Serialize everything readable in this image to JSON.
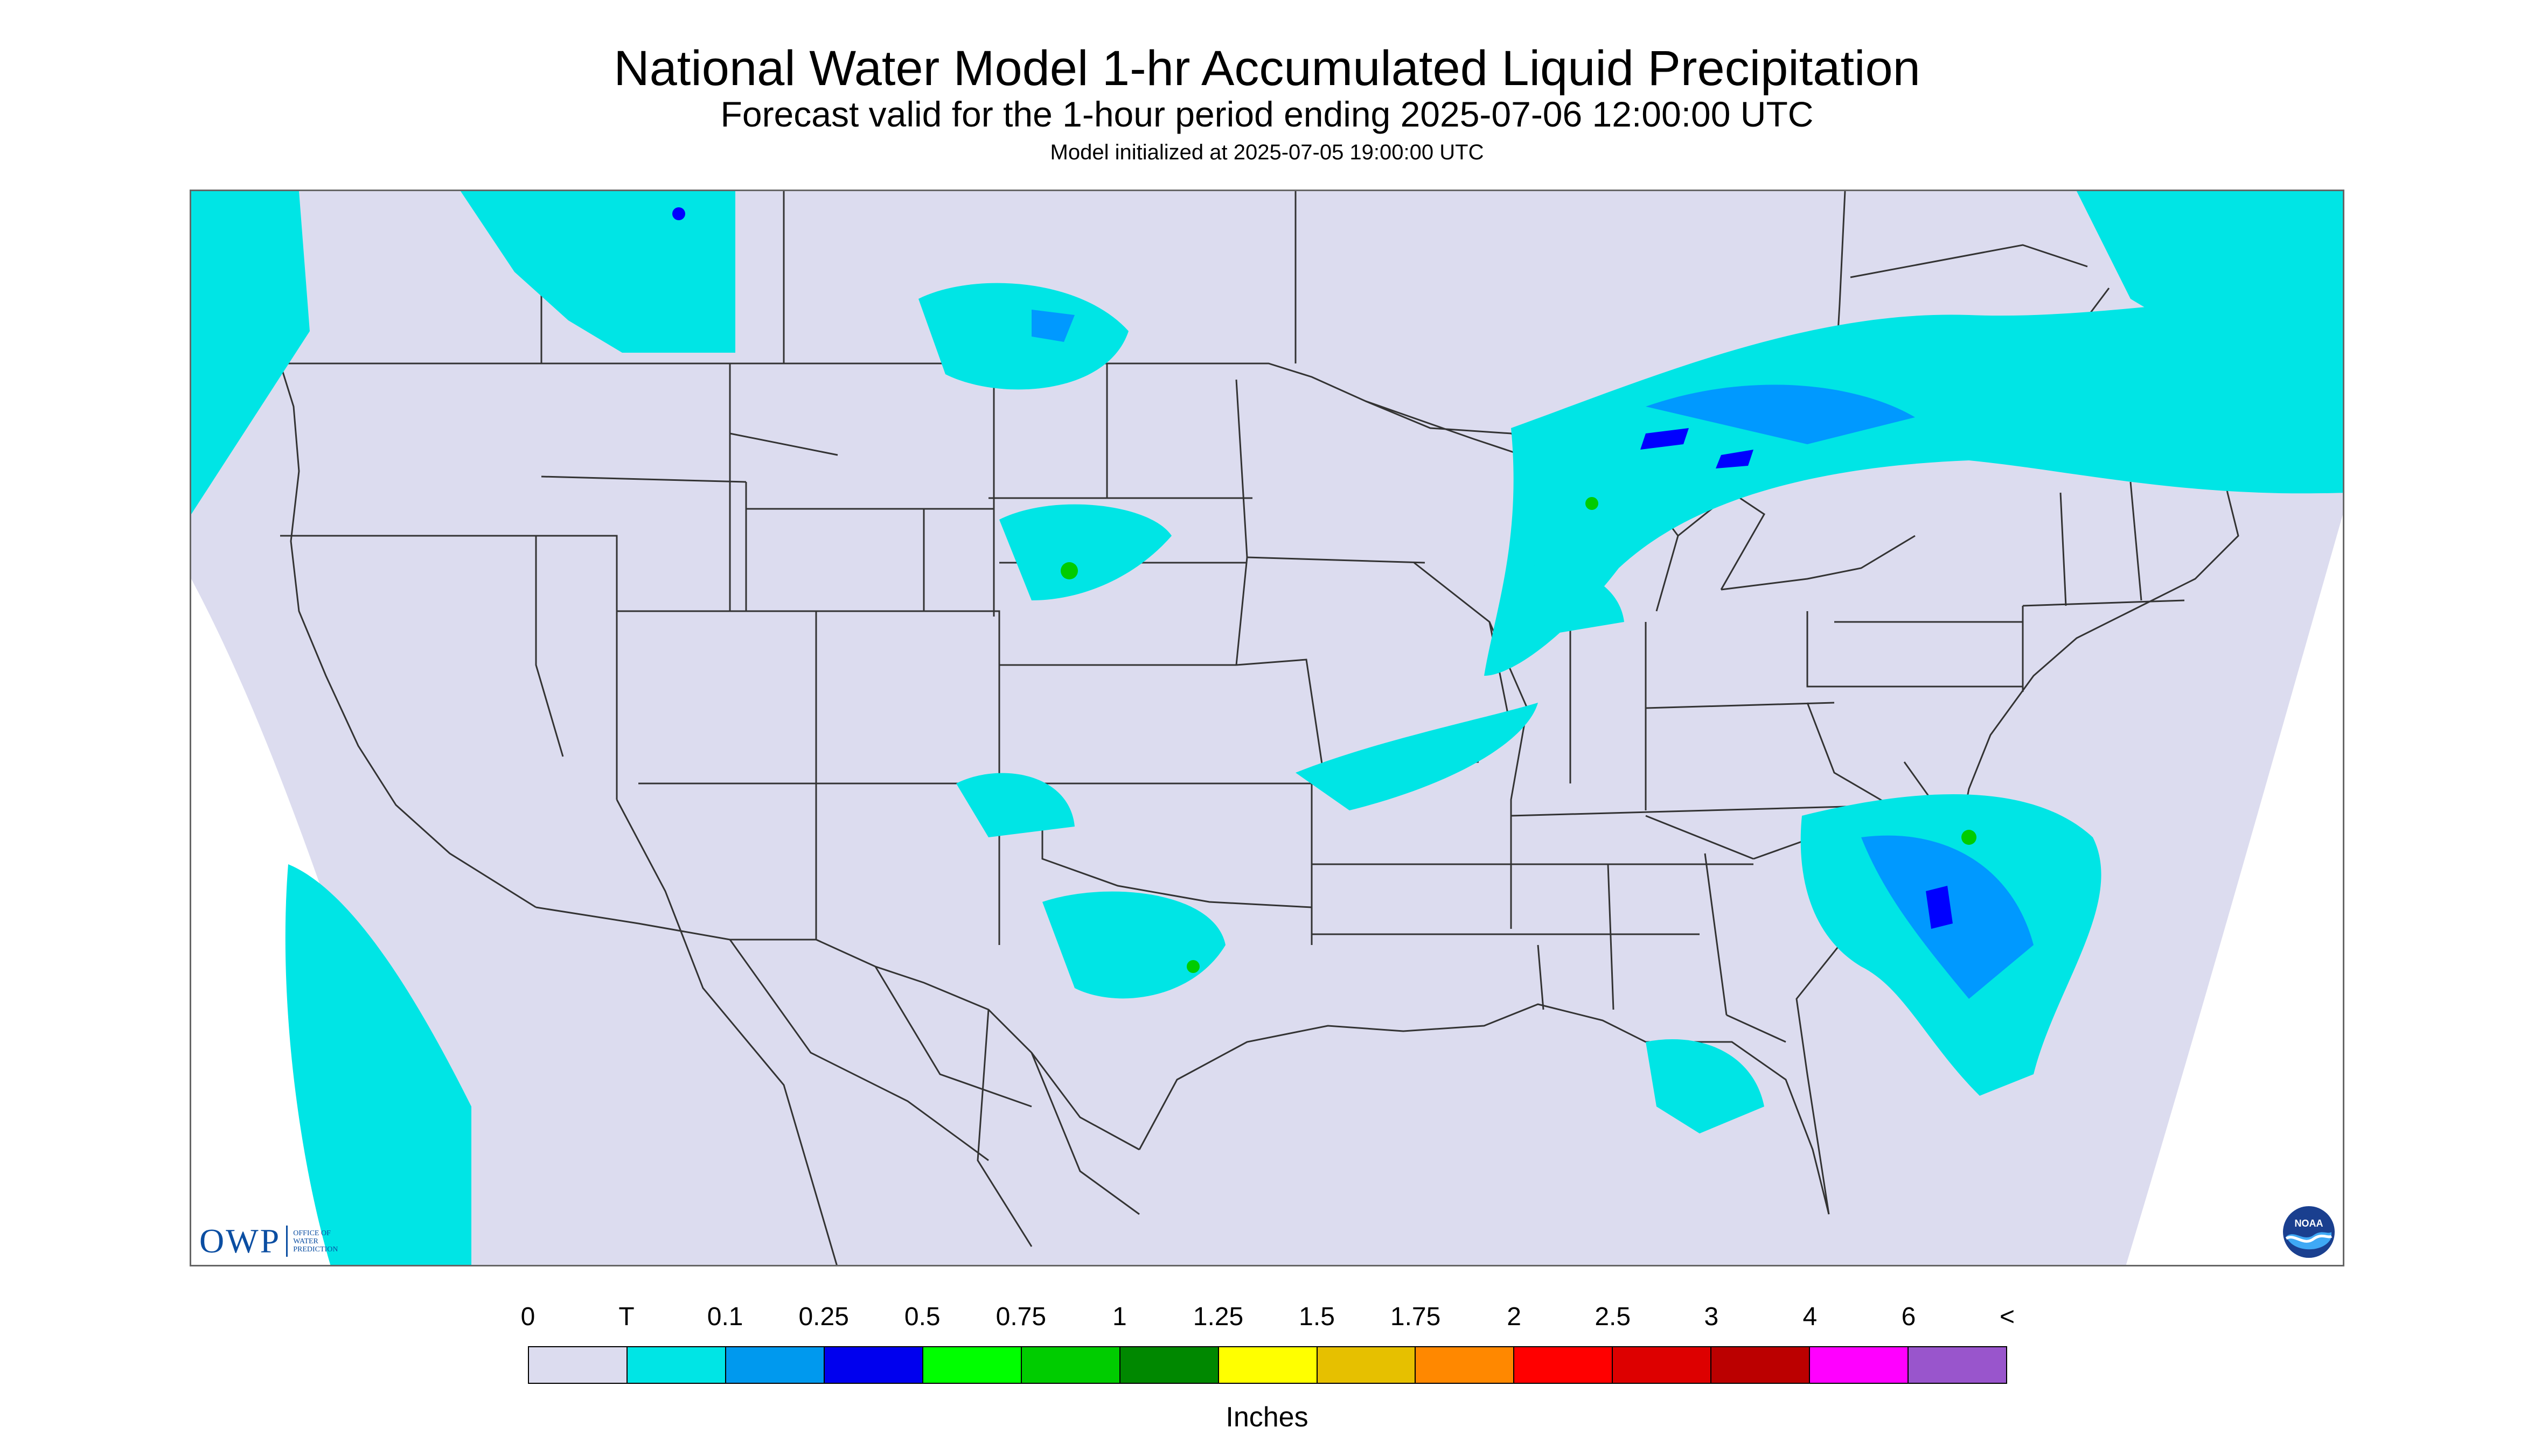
{
  "header": {
    "title": "National Water Model 1-hr Accumulated Liquid Precipitation",
    "subtitle": "Forecast valid for the 1-hour period ending 2025-07-06 12:00:00 UTC",
    "init": "Model initialized at 2025-07-05 19:00:00 UTC"
  },
  "map": {
    "background_color": "#ffffff",
    "domain_fill_color": "#dcdcef",
    "boundary_color": "#333333",
    "precip_light_color": "#00e5e5",
    "precip_medium_color": "#0099ff",
    "precip_heavy_color": "#0000ff",
    "precip_green_color": "#00cc00"
  },
  "logos": {
    "owp": {
      "text": "OWP",
      "line1": "Office of",
      "line2": "Water",
      "line3": "Prediction"
    },
    "noaa": {
      "text": "NOAA"
    }
  },
  "legend": {
    "units": "Inches",
    "labels": [
      "0",
      "T",
      "0.1",
      "0.25",
      "0.5",
      "0.75",
      "1",
      "1.25",
      "1.5",
      "1.75",
      "2",
      "2.5",
      "3",
      "4",
      "6",
      "<"
    ],
    "colors": [
      "#dcdcef",
      "#00e5e5",
      "#0099ee",
      "#0000ee",
      "#00ff00",
      "#00cc00",
      "#008800",
      "#ffff00",
      "#e6c000",
      "#ff8800",
      "#ff0000",
      "#dd0000",
      "#bb0000",
      "#ff00ff",
      "#9955cc"
    ]
  }
}
